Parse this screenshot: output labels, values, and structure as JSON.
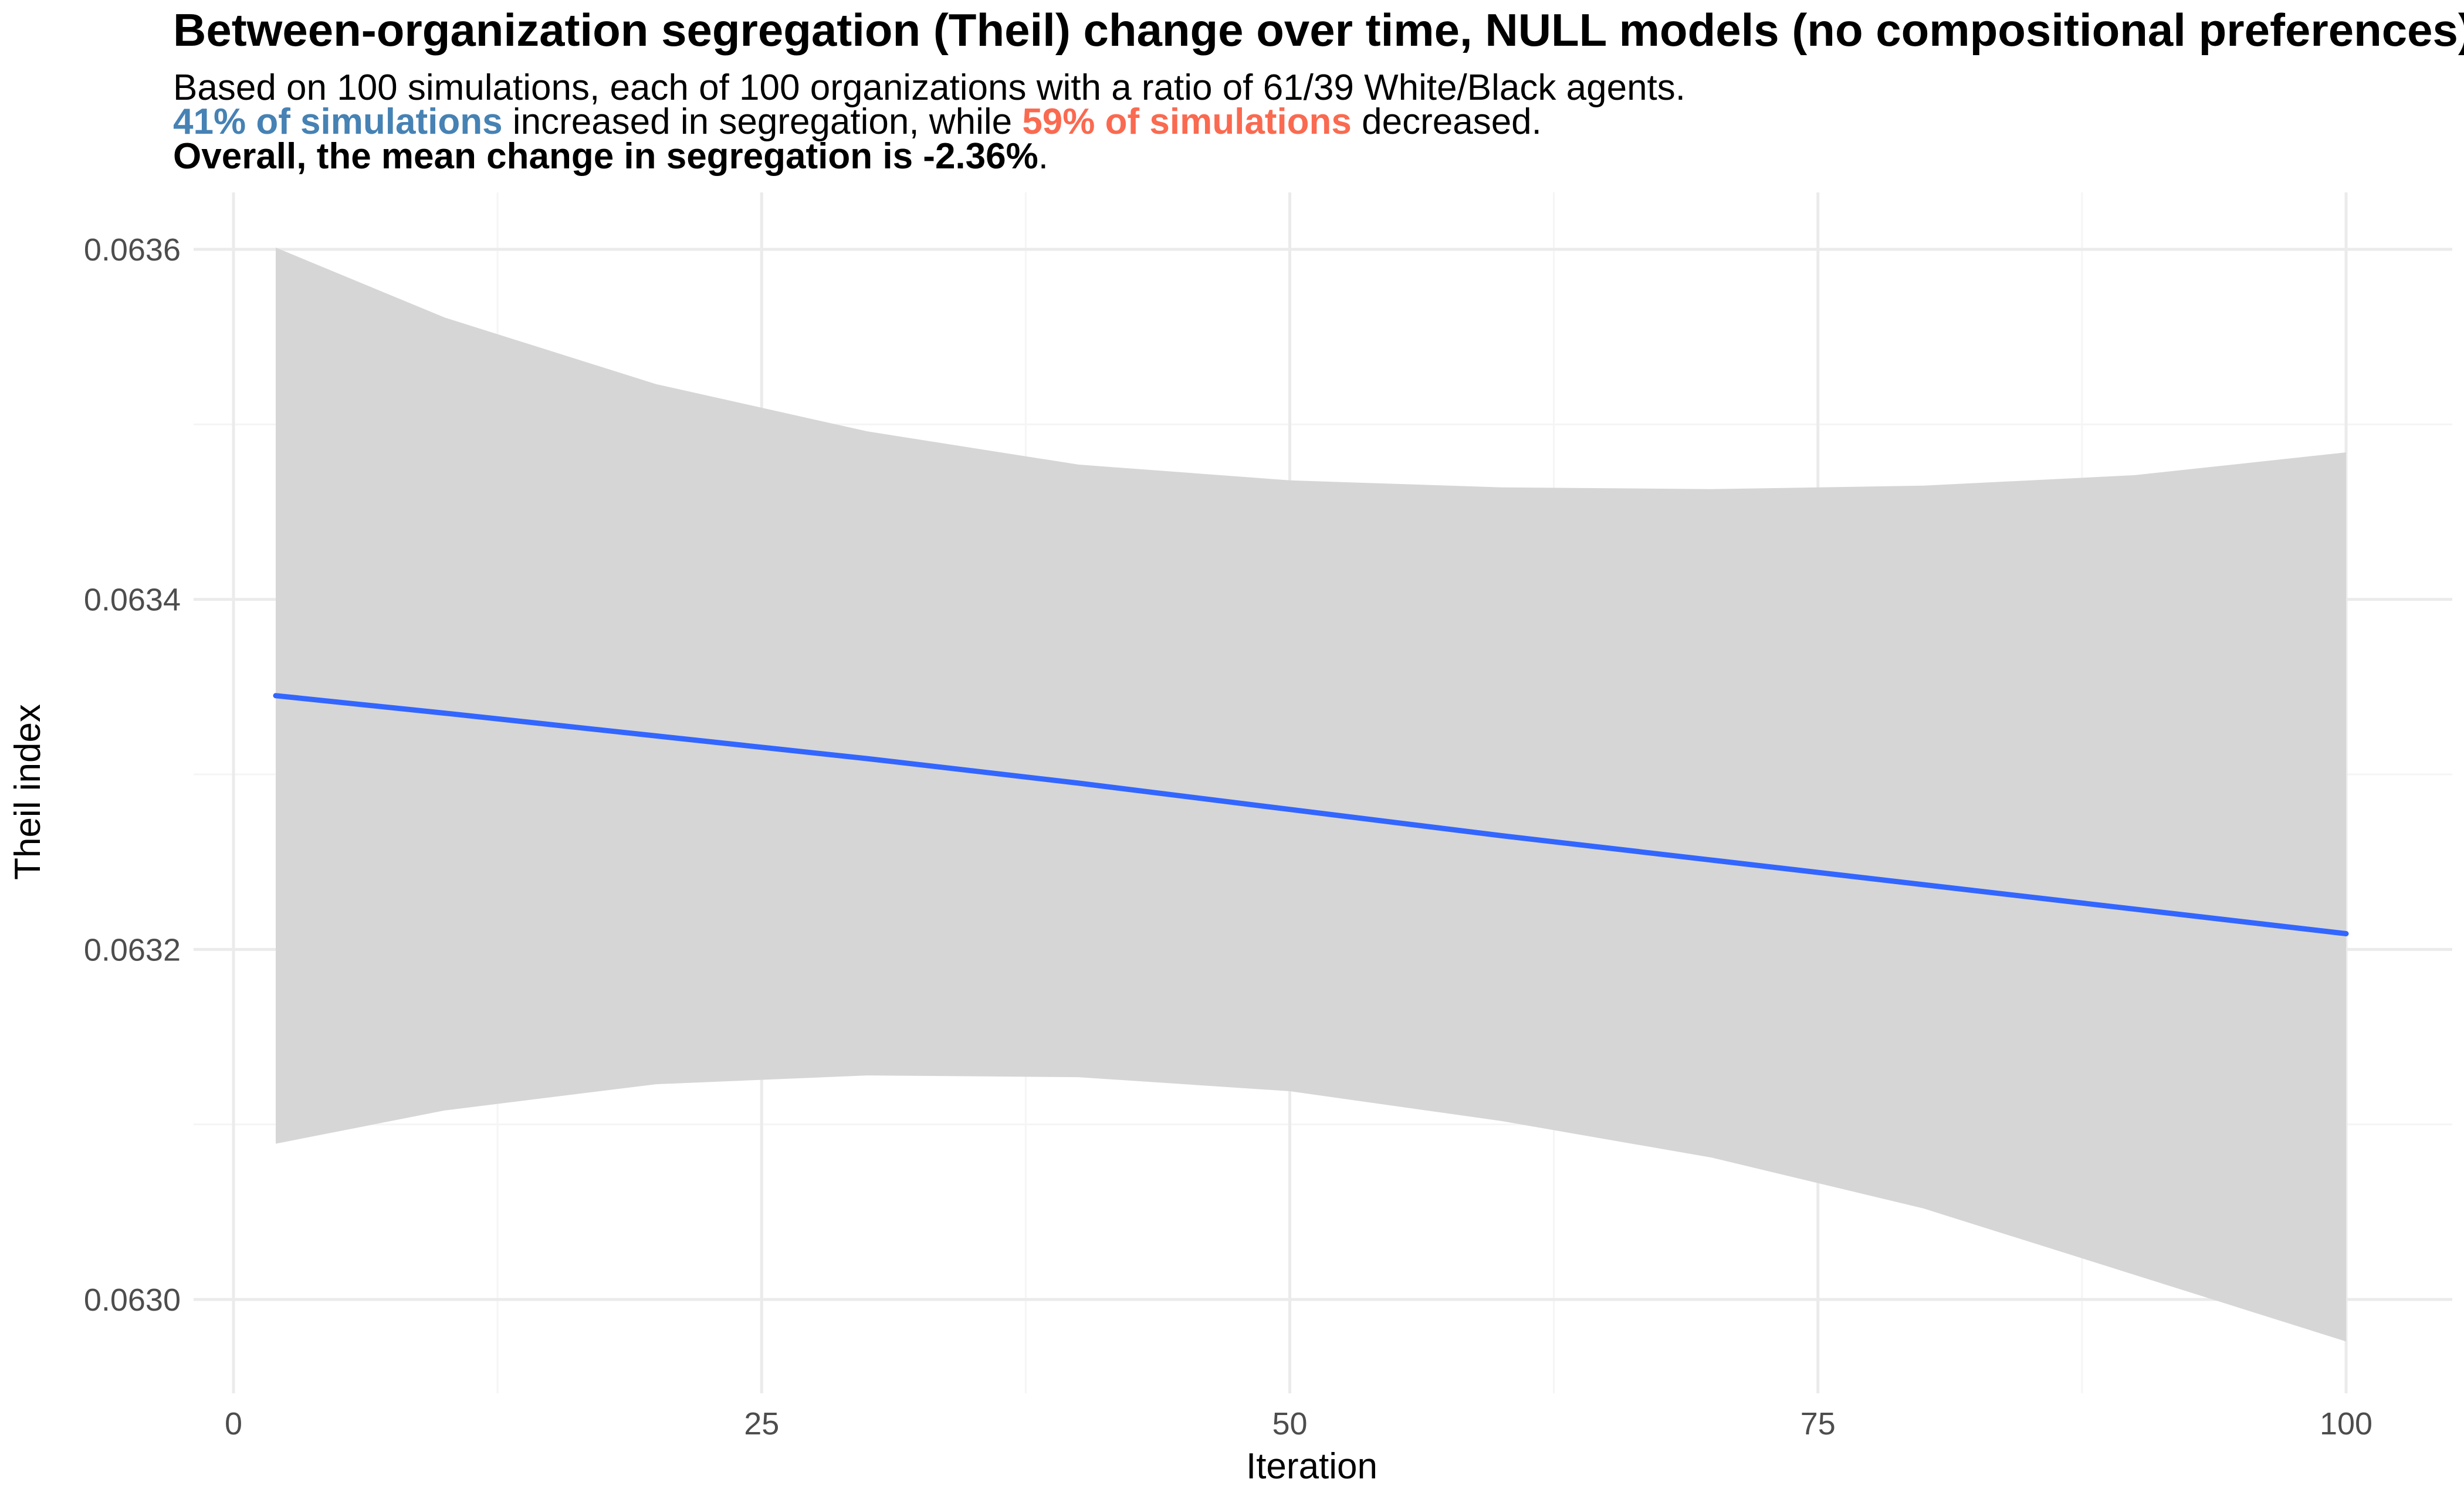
{
  "title": "Between-organization segregation (Theil) change over time, NULL models (no compositional preferences)",
  "subtitle": {
    "line1": "Based on 100 simulations, each of 100 organizations with a ratio of 61/39 White/Black agents.",
    "line2_part1": "41% of simulations",
    "line2_part2": " increased in segregation, while ",
    "line2_part3": "59% of simulations",
    "line2_part4": " decreased.",
    "line3_bold": "Overall, the mean change in segregation is -2.36%",
    "line3_end": "."
  },
  "colors": {
    "increase": "#4682B4",
    "decrease": "#FA6A50",
    "trend_line": "#3366FF",
    "ribbon": "#D6D6D6"
  },
  "chart_data": {
    "type": "line",
    "title": "Between-organization segregation (Theil) change over time, NULL models (no compositional preferences)",
    "xlabel": "Iteration",
    "ylabel": "Theil index",
    "xlim": [
      0,
      100
    ],
    "ylim": [
      0.063,
      0.0636
    ],
    "x_ticks": [
      0,
      25,
      50,
      75,
      100
    ],
    "x_tick_labels": [
      "0",
      "25",
      "50",
      "75",
      "100"
    ],
    "y_ticks": [
      0.063,
      0.0632,
      0.0634,
      0.0636
    ],
    "y_tick_labels": [
      "0.0630",
      "0.0632",
      "0.0634",
      "0.0636"
    ],
    "grid": true,
    "legend": "none",
    "series": [
      {
        "kind": "smooth-fit",
        "x": [
          2,
          10,
          20,
          30,
          40,
          50,
          60,
          70,
          80,
          90,
          100
        ],
        "y": [
          0.063345,
          0.063335,
          0.063322,
          0.063309,
          0.063295,
          0.06328,
          0.063265,
          0.063251,
          0.063237,
          0.063223,
          0.063209
        ],
        "ci_lower": [
          0.063089,
          0.063108,
          0.063123,
          0.063128,
          0.063127,
          0.063119,
          0.063102,
          0.063081,
          0.063052,
          0.063014,
          0.062976
        ],
        "ci_upper": [
          0.063601,
          0.063561,
          0.063523,
          0.063496,
          0.063477,
          0.063468,
          0.063464,
          0.063463,
          0.063465,
          0.063471,
          0.063484
        ]
      }
    ]
  }
}
